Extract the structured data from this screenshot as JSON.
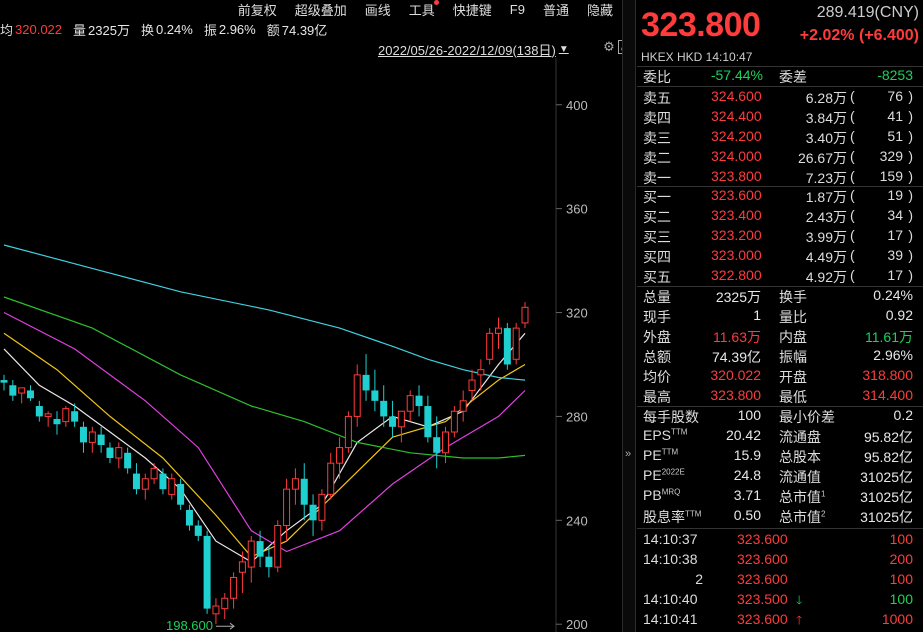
{
  "toolbar": {
    "items": [
      "前复权",
      "超级叠加",
      "画线",
      "工具",
      "快捷键",
      "F9",
      "普通",
      "隐藏"
    ]
  },
  "infobar": {
    "avg_label": "均",
    "avg_value": "320.022",
    "vol_label": "量",
    "vol_value": "2325万",
    "turn_label": "换",
    "turn_value": "0.24%",
    "amp_label": "振",
    "amp_value": "2.96%",
    "amt_label": "额",
    "amt_value": "74.39亿"
  },
  "chart_header": {
    "date_range": "2022/05/26-2022/12/09(138日)"
  },
  "quote": {
    "price": "323.800",
    "cny": "289.419(CNY)",
    "change": "+2.02% (+6.400)",
    "exchange": "HKEX  HKD  14:10:47"
  },
  "weibi": {
    "label1": "委比",
    "value1": "-57.44%",
    "label2": "委差",
    "value2": "-8253"
  },
  "asks": [
    {
      "label": "卖五",
      "price": "324.600",
      "vol": "6.28万",
      "count": "76"
    },
    {
      "label": "卖四",
      "price": "324.400",
      "vol": "3.84万",
      "count": "41"
    },
    {
      "label": "卖三",
      "price": "324.200",
      "vol": "3.40万",
      "count": "51"
    },
    {
      "label": "卖二",
      "price": "324.000",
      "vol": "26.67万",
      "count": "329"
    },
    {
      "label": "卖一",
      "price": "323.800",
      "vol": "7.23万",
      "count": "159"
    }
  ],
  "bids": [
    {
      "label": "买一",
      "price": "323.600",
      "vol": "1.87万",
      "count": "19"
    },
    {
      "label": "买二",
      "price": "323.400",
      "vol": "2.43万",
      "count": "34"
    },
    {
      "label": "买三",
      "price": "323.200",
      "vol": "3.99万",
      "count": "17"
    },
    {
      "label": "买四",
      "price": "323.000",
      "vol": "4.49万",
      "count": "39"
    },
    {
      "label": "买五",
      "price": "322.800",
      "vol": "4.92万",
      "count": "17"
    }
  ],
  "stats": [
    {
      "l1": "总量",
      "v1": "2325万",
      "c1": "white",
      "l2": "换手",
      "v2": "0.24%",
      "c2": "white"
    },
    {
      "l1": "现手",
      "v1": "1",
      "c1": "white",
      "l2": "量比",
      "v2": "0.92",
      "c2": "white"
    },
    {
      "l1": "外盘",
      "v1": "11.63万",
      "c1": "red",
      "l2": "内盘",
      "v2": "11.61万",
      "c2": "green"
    },
    {
      "l1": "总额",
      "v1": "74.39亿",
      "c1": "white",
      "l2": "振幅",
      "v2": "2.96%",
      "c2": "white"
    },
    {
      "l1": "均价",
      "v1": "320.022",
      "c1": "red",
      "l2": "开盘",
      "v2": "318.800",
      "c2": "red"
    },
    {
      "l1": "最高",
      "v1": "323.800",
      "c1": "red",
      "l2": "最低",
      "v2": "314.400",
      "c2": "red"
    }
  ],
  "fundamentals": [
    {
      "l1": "每手股数",
      "s1": "",
      "v1": "100",
      "l2": "最小价差",
      "s2": "",
      "v2": "0.2"
    },
    {
      "l1": "EPS",
      "s1": "TTM",
      "v1": "20.42",
      "l2": "流通盘",
      "s2": "",
      "v2": "95.82亿"
    },
    {
      "l1": "PE",
      "s1": "TTM",
      "v1": "15.9",
      "l2": "总股本",
      "s2": "",
      "v2": "95.82亿"
    },
    {
      "l1": "PE",
      "s1": "2022E",
      "v1": "24.8",
      "l2": "流通值",
      "s2": "",
      "v2": "31025亿"
    },
    {
      "l1": "PB",
      "s1": "MRQ",
      "v1": "3.71",
      "l2": "总市值",
      "s2": "1",
      "v2": "31025亿"
    },
    {
      "l1": "股息率",
      "s1": "TTM",
      "v1": "0.50",
      "l2": "总市值",
      "s2": "2",
      "v2": "31025亿"
    }
  ],
  "ticks": [
    {
      "time": "14:10:37",
      "price": "323.600",
      "vol": "100",
      "vcolor": "red",
      "arrow": ""
    },
    {
      "time": "14:10:38",
      "price": "323.600",
      "vol": "200",
      "vcolor": "red",
      "arrow": ""
    },
    {
      "time": "2",
      "price": "323.600",
      "vol": "100",
      "vcolor": "red",
      "arrow": ""
    },
    {
      "time": "14:10:40",
      "price": "323.500",
      "vol": "100",
      "vcolor": "green",
      "arrow": "down"
    },
    {
      "time": "14:10:41",
      "price": "323.600",
      "vol": "1000",
      "vcolor": "red",
      "arrow": "up"
    }
  ],
  "chart_data": {
    "type": "candlestick",
    "y_ticks": [
      "400",
      "360",
      "320",
      "280",
      "240",
      "200"
    ],
    "ylim": [
      197,
      418
    ],
    "low_label": "198.600",
    "candle_up_color": "#ff3b3b",
    "candle_down_color": "#1fd0d0",
    "ma_colors": [
      "#e8e8e8",
      "#f0c419",
      "#e040e0",
      "#2fbf2f",
      "#40d0e0"
    ],
    "candles": [
      [
        294,
        296,
        290,
        293
      ],
      [
        292,
        294,
        286,
        288
      ],
      [
        289,
        291,
        285,
        291
      ],
      [
        290,
        292,
        286,
        287
      ],
      [
        284,
        286,
        278,
        280
      ],
      [
        280,
        282,
        276,
        281
      ],
      [
        279,
        282,
        273,
        277
      ],
      [
        278,
        284,
        276,
        283
      ],
      [
        282,
        285,
        276,
        278
      ],
      [
        276,
        278,
        266,
        270
      ],
      [
        270,
        276,
        266,
        274
      ],
      [
        273,
        276,
        266,
        269
      ],
      [
        268,
        270,
        262,
        264
      ],
      [
        264,
        270,
        260,
        268
      ],
      [
        266,
        268,
        258,
        260
      ],
      [
        258,
        262,
        250,
        252
      ],
      [
        252,
        258,
        248,
        256
      ],
      [
        256,
        262,
        254,
        260
      ],
      [
        258,
        260,
        250,
        252
      ],
      [
        250,
        258,
        248,
        256
      ],
      [
        254,
        256,
        244,
        246
      ],
      [
        244,
        246,
        236,
        238
      ],
      [
        238,
        240,
        232,
        234
      ],
      [
        234,
        236,
        204,
        206
      ],
      [
        204,
        210,
        200,
        207
      ],
      [
        206,
        212,
        202,
        210
      ],
      [
        210,
        220,
        206,
        218
      ],
      [
        220,
        228,
        212,
        224
      ],
      [
        222,
        234,
        216,
        232
      ],
      [
        232,
        236,
        222,
        226
      ],
      [
        226,
        230,
        218,
        222
      ],
      [
        222,
        240,
        220,
        238
      ],
      [
        238,
        256,
        232,
        252
      ],
      [
        252,
        260,
        246,
        256
      ],
      [
        256,
        262,
        240,
        246
      ],
      [
        246,
        250,
        234,
        240
      ],
      [
        240,
        252,
        236,
        250
      ],
      [
        250,
        266,
        248,
        262
      ],
      [
        262,
        272,
        256,
        268
      ],
      [
        268,
        282,
        266,
        280
      ],
      [
        280,
        300,
        276,
        296
      ],
      [
        296,
        304,
        286,
        290
      ],
      [
        290,
        298,
        282,
        286
      ],
      [
        286,
        292,
        276,
        280
      ],
      [
        280,
        286,
        272,
        276
      ],
      [
        276,
        282,
        270,
        282
      ],
      [
        282,
        290,
        278,
        288
      ],
      [
        288,
        292,
        280,
        284
      ],
      [
        284,
        288,
        270,
        272
      ],
      [
        272,
        280,
        260,
        266
      ],
      [
        266,
        276,
        262,
        274
      ],
      [
        274,
        284,
        272,
        282
      ],
      [
        282,
        290,
        278,
        286
      ],
      [
        290,
        298,
        286,
        294
      ],
      [
        296,
        302,
        290,
        298
      ],
      [
        302,
        314,
        300,
        312
      ],
      [
        312,
        318,
        306,
        314
      ],
      [
        314,
        316,
        298,
        300
      ],
      [
        302,
        316,
        300,
        314
      ],
      [
        316,
        324,
        314,
        322
      ]
    ],
    "ma_lines": [
      [
        [
          0,
          306
        ],
        [
          4,
          292
        ],
        [
          8,
          284
        ],
        [
          12,
          274
        ],
        [
          16,
          264
        ],
        [
          20,
          252
        ],
        [
          24,
          232
        ],
        [
          28,
          224
        ],
        [
          32,
          236
        ],
        [
          36,
          246
        ],
        [
          40,
          270
        ],
        [
          44,
          280
        ],
        [
          48,
          276
        ],
        [
          52,
          282
        ],
        [
          56,
          300
        ],
        [
          59,
          312
        ]
      ],
      [
        [
          0,
          312
        ],
        [
          6,
          298
        ],
        [
          12,
          280
        ],
        [
          18,
          264
        ],
        [
          24,
          242
        ],
        [
          28,
          226
        ],
        [
          32,
          232
        ],
        [
          38,
          252
        ],
        [
          44,
          272
        ],
        [
          50,
          278
        ],
        [
          56,
          294
        ],
        [
          59,
          300
        ]
      ],
      [
        [
          0,
          320
        ],
        [
          8,
          306
        ],
        [
          16,
          286
        ],
        [
          22,
          268
        ],
        [
          28,
          236
        ],
        [
          32,
          228
        ],
        [
          38,
          236
        ],
        [
          44,
          254
        ],
        [
          50,
          268
        ],
        [
          56,
          280
        ],
        [
          59,
          290
        ]
      ],
      [
        [
          0,
          326
        ],
        [
          10,
          314
        ],
        [
          20,
          296
        ],
        [
          28,
          284
        ],
        [
          34,
          278
        ],
        [
          40,
          270
        ],
        [
          46,
          266
        ],
        [
          52,
          264
        ],
        [
          56,
          264
        ],
        [
          59,
          265
        ]
      ],
      [
        [
          0,
          346
        ],
        [
          10,
          337
        ],
        [
          20,
          328
        ],
        [
          30,
          321
        ],
        [
          38,
          314
        ],
        [
          44,
          307
        ],
        [
          48,
          302
        ],
        [
          52,
          298
        ],
        [
          56,
          295
        ],
        [
          59,
          294
        ]
      ]
    ]
  }
}
